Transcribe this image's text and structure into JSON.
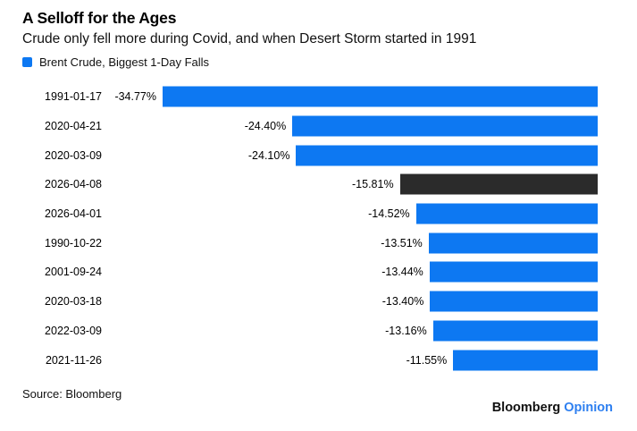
{
  "header": {
    "title": "A Selloff for the Ages",
    "subtitle": "Crude only fell more during Covid, and when Desert Storm started in 1991"
  },
  "legend": {
    "label": "Brent Crude, Biggest 1-Day Falls"
  },
  "chart_data": {
    "type": "bar",
    "orientation": "horizontal",
    "title": "A Selloff for the Ages",
    "series_name": "Brent Crude, Biggest 1-Day Falls",
    "categories": [
      "1991-01-17",
      "2020-04-21",
      "2020-03-09",
      "2026-04-08",
      "2026-04-01",
      "1990-10-22",
      "2001-09-24",
      "2020-03-18",
      "2022-03-09",
      "2021-11-26"
    ],
    "values": [
      -34.77,
      -24.4,
      -24.1,
      -15.81,
      -14.52,
      -13.51,
      -13.44,
      -13.4,
      -13.16,
      -11.55
    ],
    "labels": [
      "-34.77%",
      "-24.40%",
      "-24.10%",
      "-15.81%",
      "-14.52%",
      "-13.51%",
      "-13.44%",
      "-13.40%",
      "-13.16%",
      "-11.55%"
    ],
    "highlighted_category": "2026-04-08",
    "xlim": [
      -34.77,
      0
    ],
    "grid": false,
    "legend_position": "top-left",
    "value_labels_position": "left-of-bar",
    "bars_aligned": "right"
  },
  "footer": {
    "source": "Source: Bloomberg",
    "brand": "Bloomberg",
    "brand_suffix": "Opinion"
  },
  "colors": {
    "bar": "#0d78f2",
    "highlight_bar": "#2b2b2b",
    "accent_text": "#2d7ff0",
    "background": "#ffffff"
  }
}
